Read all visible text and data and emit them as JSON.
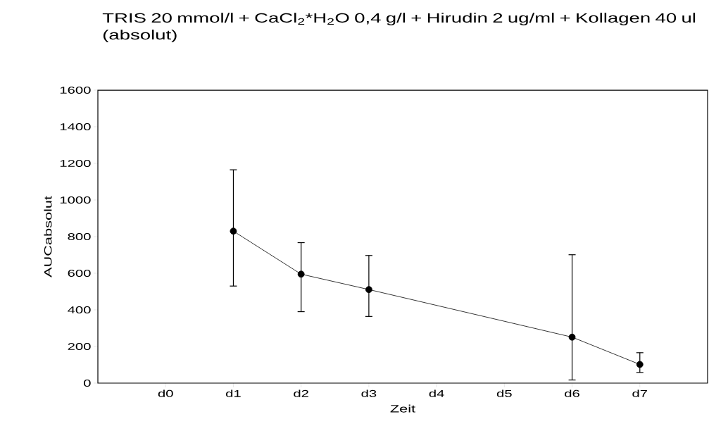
{
  "chart_data": {
    "type": "line",
    "title": "TRIS 20 mmol/l + CaCl$_{2}$*H$_{2}$O 0,4 g/l + Hirudin 2 ug/ml + Kollagen 40 ul (absolut)",
    "xlabel": "Zeit",
    "ylabel": "AUCabsolut",
    "categories": [
      "d0",
      "d1",
      "d2",
      "d3",
      "d4",
      "d5",
      "d6",
      "d7"
    ],
    "series": [
      {
        "color": "#000000",
        "values": [
          null,
          830,
          595,
          511,
          null,
          null,
          251,
          102
        ],
        "errors": [
          null,
          [
            530,
            1165
          ],
          [
            390,
            767
          ],
          [
            364,
            697
          ],
          null,
          null,
          [
            17,
            701
          ],
          [
            58,
            166
          ]
        ]
      }
    ],
    "ylim": [
      0,
      1600
    ],
    "yticks": [
      0,
      200,
      400,
      600,
      800,
      1000,
      1200,
      1400,
      1600
    ],
    "grid": false,
    "marker": "circle",
    "line_style": "solid"
  }
}
